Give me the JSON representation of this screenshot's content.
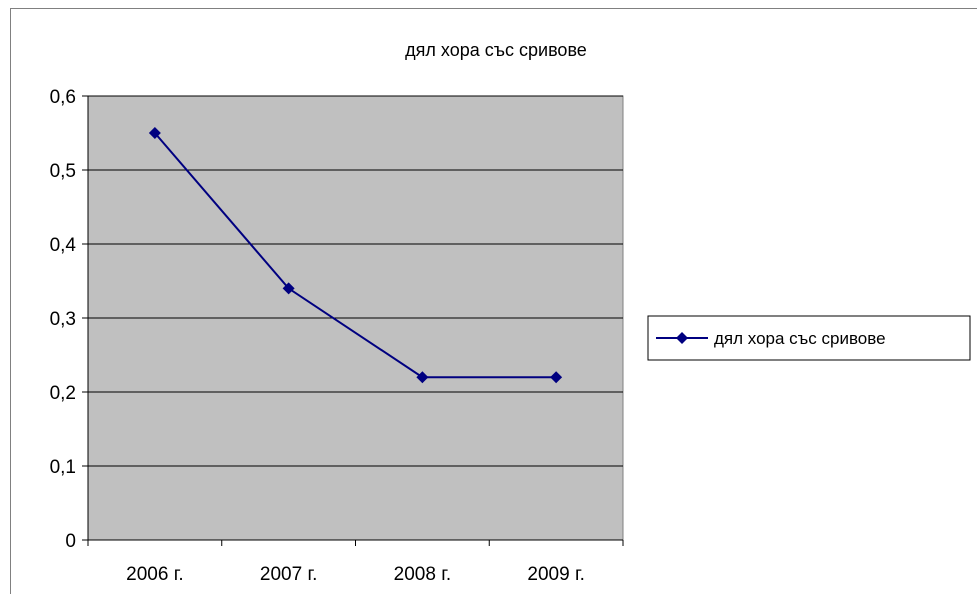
{
  "chart_data": {
    "type": "line",
    "title": "дял хора със сривове",
    "categories": [
      "2006 г.",
      "2007 г.",
      "2008 г.",
      "2009 г."
    ],
    "series": [
      {
        "name": "дял хора със сривове",
        "values": [
          0.55,
          0.34,
          0.22,
          0.22
        ]
      }
    ],
    "y_ticks": [
      "0",
      "0,1",
      "0,2",
      "0,3",
      "0,4",
      "0,5",
      "0,6"
    ],
    "ylim": [
      0,
      0.6
    ],
    "xlabel": "",
    "ylabel": "",
    "grid": true,
    "legend_position": "right",
    "colors": {
      "series": "#000080",
      "plot_background": "#c0c0c0",
      "gridline": "#000000"
    }
  }
}
